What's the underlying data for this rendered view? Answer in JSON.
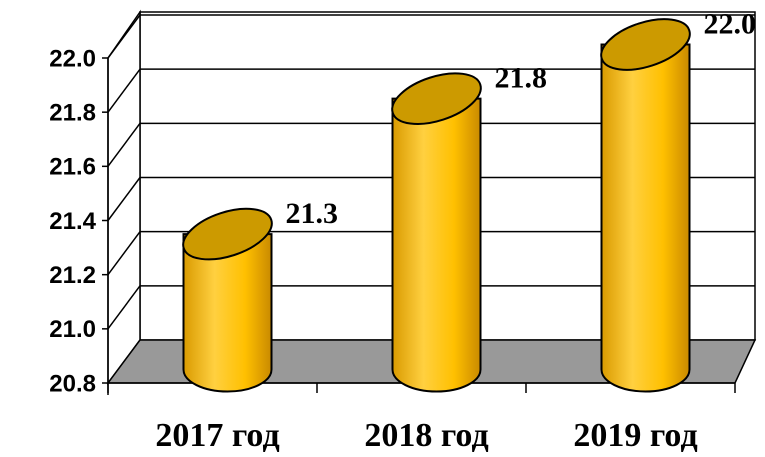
{
  "chart_data": {
    "type": "bar",
    "categories": [
      "2017 год",
      "2018 год",
      "2019 год"
    ],
    "values": [
      21.3,
      21.8,
      22.0
    ],
    "value_labels": [
      "21.3",
      "21.8",
      "22.0"
    ],
    "color": "#ffc000",
    "ylim": [
      20.8,
      22.0
    ],
    "yticks": [
      20.8,
      {
        "value": 21,
        "label": "21.0"
      },
      21.2,
      21.4,
      21.6,
      21.8,
      {
        "value": 22,
        "label": "22.0"
      }
    ],
    "grid": true
  }
}
